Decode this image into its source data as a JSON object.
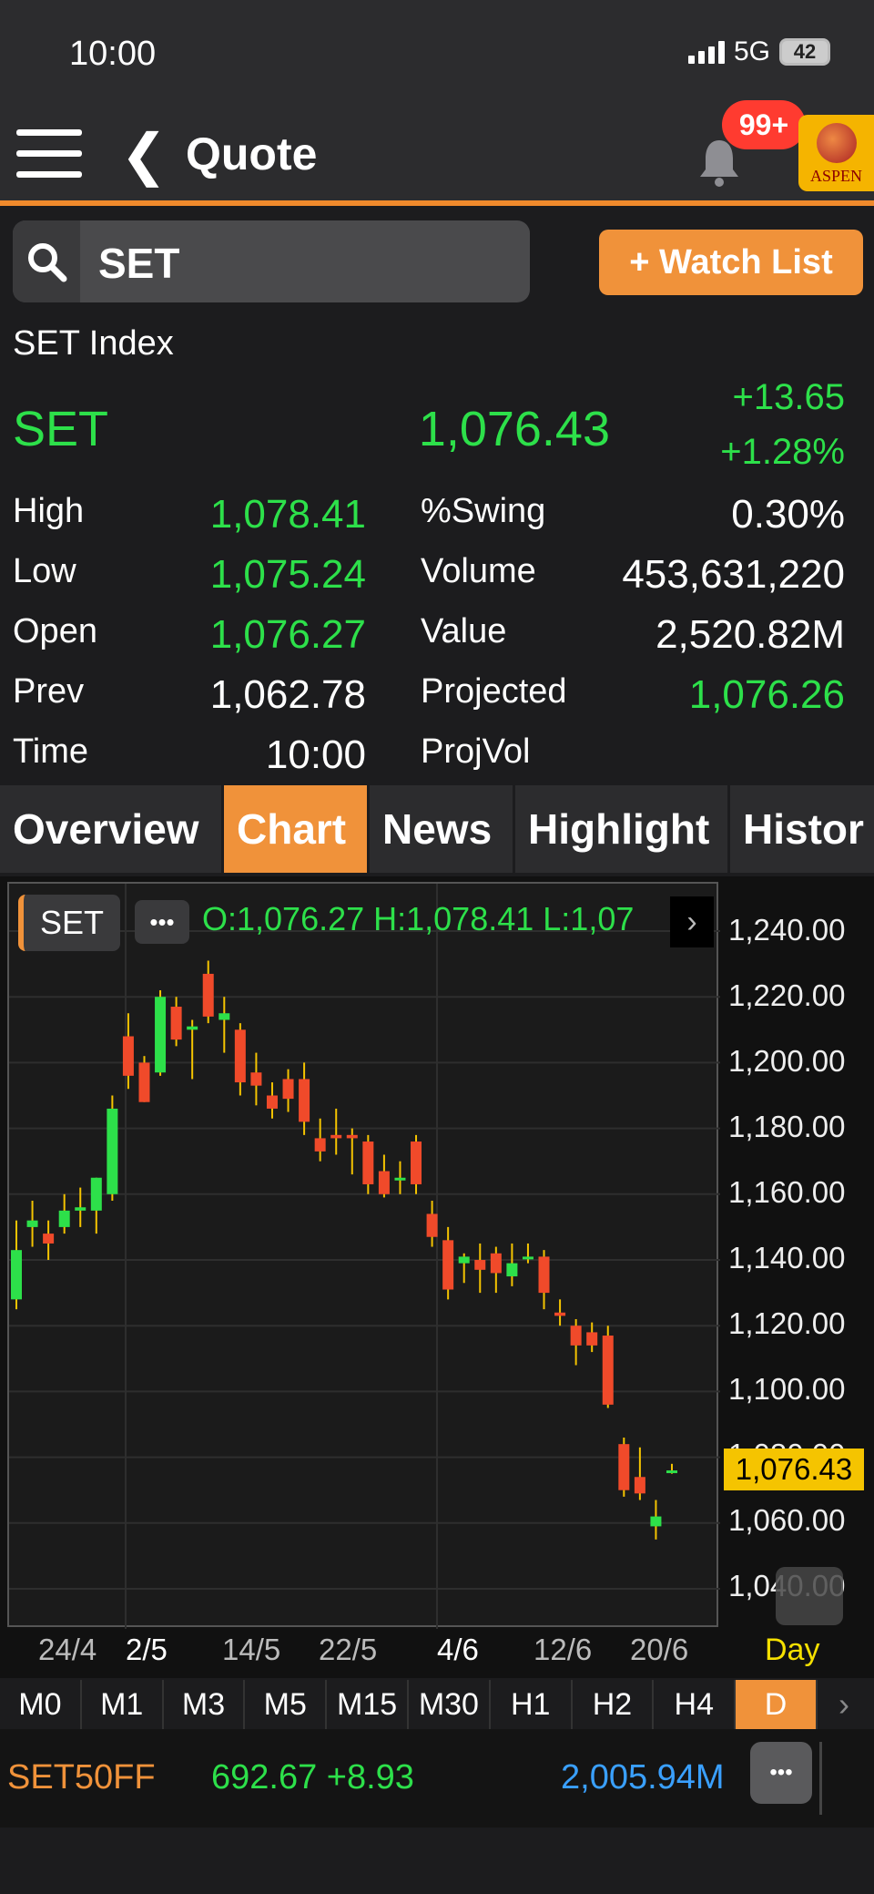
{
  "status_bar": {
    "time": "10:00",
    "network": "5G",
    "battery": "42"
  },
  "nav": {
    "title": "Quote",
    "badge": "99+",
    "logo_text": "ASPEN"
  },
  "search": {
    "value": "SET",
    "watch_label": "+ Watch List"
  },
  "quote": {
    "name": "SET Index",
    "symbol": "SET",
    "last": "1,076.43",
    "change": "+13.65",
    "change_pct": "+1.28%",
    "rows": [
      {
        "label": "High",
        "value": "1,078.41",
        "label2": "%Swing",
        "value2": "0.30%"
      },
      {
        "label": "Low",
        "value": "1,075.24",
        "label2": "Volume",
        "value2": "453,631,220"
      },
      {
        "label": "Open",
        "value": "1,076.27",
        "label2": "Value",
        "value2": "2,520.82M"
      },
      {
        "label": "Prev",
        "value": "1,062.78",
        "label2": "Projected",
        "value2": "1,076.26"
      },
      {
        "label": "Time",
        "value": "10:00",
        "label2": "ProjVol",
        "value2": ""
      }
    ]
  },
  "tabs": [
    "Overview",
    "Chart",
    "News",
    "Highlight",
    "Histor"
  ],
  "active_tab": "Chart",
  "chart_header": {
    "symbol": "SET",
    "more": "•••",
    "ohl": "O:1,076.27  H:1,078.41  L:1,07"
  },
  "price_tag": "1,076.43",
  "interval_label": "Day",
  "periods": [
    "M0",
    "M1",
    "M3",
    "M5",
    "M15",
    "M30",
    "H1",
    "H2",
    "H4",
    "D"
  ],
  "active_period": "D",
  "ticker": {
    "symbol": "SET50FF",
    "price": "692.67 +8.93",
    "value": "2,005.94M",
    "more": "•••"
  },
  "colors": {
    "accent": "#f0923a",
    "up": "#2de04a",
    "down": "#f04a2a",
    "value": "#3aa0ff"
  },
  "chart_data": {
    "type": "candlestick",
    "y_ticks": [
      "1,240.00",
      "1,220.00",
      "1,200.00",
      "1,180.00",
      "1,160.00",
      "1,140.00",
      "1,120.00",
      "1,100.00",
      "1,080.00",
      "1,060.00",
      "1,040.00"
    ],
    "ylim": [
      1035,
      1250
    ],
    "x_ticks": [
      "24/4",
      "2/5",
      "14/5",
      "22/5",
      "4/6",
      "12/6",
      "20/6"
    ],
    "grid": true,
    "candles": [
      {
        "o": 1128,
        "h": 1152,
        "l": 1125,
        "c": 1143
      },
      {
        "o": 1150,
        "h": 1158,
        "l": 1144,
        "c": 1152
      },
      {
        "o": 1148,
        "h": 1152,
        "l": 1140,
        "c": 1145
      },
      {
        "o": 1150,
        "h": 1160,
        "l": 1148,
        "c": 1155
      },
      {
        "o": 1155,
        "h": 1162,
        "l": 1150,
        "c": 1156
      },
      {
        "o": 1155,
        "h": 1165,
        "l": 1148,
        "c": 1165
      },
      {
        "o": 1160,
        "h": 1190,
        "l": 1158,
        "c": 1186
      },
      {
        "o": 1208,
        "h": 1215,
        "l": 1192,
        "c": 1196
      },
      {
        "o": 1200,
        "h": 1202,
        "l": 1188,
        "c": 1188
      },
      {
        "o": 1197,
        "h": 1222,
        "l": 1196,
        "c": 1220
      },
      {
        "o": 1217,
        "h": 1220,
        "l": 1205,
        "c": 1207
      },
      {
        "o": 1210,
        "h": 1213,
        "l": 1195,
        "c": 1211
      },
      {
        "o": 1227,
        "h": 1231,
        "l": 1212,
        "c": 1214
      },
      {
        "o": 1213,
        "h": 1220,
        "l": 1203,
        "c": 1215
      },
      {
        "o": 1210,
        "h": 1212,
        "l": 1190,
        "c": 1194
      },
      {
        "o": 1197,
        "h": 1203,
        "l": 1187,
        "c": 1193
      },
      {
        "o": 1190,
        "h": 1194,
        "l": 1183,
        "c": 1186
      },
      {
        "o": 1195,
        "h": 1198,
        "l": 1185,
        "c": 1189
      },
      {
        "o": 1195,
        "h": 1200,
        "l": 1178,
        "c": 1182
      },
      {
        "o": 1177,
        "h": 1183,
        "l": 1170,
        "c": 1173
      },
      {
        "o": 1178,
        "h": 1186,
        "l": 1172,
        "c": 1177
      },
      {
        "o": 1178,
        "h": 1180,
        "l": 1166,
        "c": 1177
      },
      {
        "o": 1176,
        "h": 1178,
        "l": 1160,
        "c": 1163
      },
      {
        "o": 1167,
        "h": 1172,
        "l": 1159,
        "c": 1160
      },
      {
        "o": 1165,
        "h": 1170,
        "l": 1160,
        "c": 1165
      },
      {
        "o": 1176,
        "h": 1178,
        "l": 1160,
        "c": 1163
      },
      {
        "o": 1154,
        "h": 1158,
        "l": 1144,
        "c": 1147
      },
      {
        "o": 1146,
        "h": 1150,
        "l": 1128,
        "c": 1131
      },
      {
        "o": 1139,
        "h": 1142,
        "l": 1133,
        "c": 1141
      },
      {
        "o": 1140,
        "h": 1145,
        "l": 1130,
        "c": 1137
      },
      {
        "o": 1142,
        "h": 1144,
        "l": 1130,
        "c": 1136
      },
      {
        "o": 1135,
        "h": 1145,
        "l": 1132,
        "c": 1139
      },
      {
        "o": 1141,
        "h": 1145,
        "l": 1139,
        "c": 1141
      },
      {
        "o": 1141,
        "h": 1143,
        "l": 1125,
        "c": 1130
      },
      {
        "o": 1124,
        "h": 1128,
        "l": 1120,
        "c": 1123
      },
      {
        "o": 1120,
        "h": 1122,
        "l": 1108,
        "c": 1114
      },
      {
        "o": 1118,
        "h": 1121,
        "l": 1112,
        "c": 1114
      },
      {
        "o": 1117,
        "h": 1120,
        "l": 1095,
        "c": 1096
      },
      {
        "o": 1084,
        "h": 1086,
        "l": 1068,
        "c": 1070
      },
      {
        "o": 1074,
        "h": 1083,
        "l": 1067,
        "c": 1069
      },
      {
        "o": 1059,
        "h": 1067,
        "l": 1055,
        "c": 1062
      },
      {
        "o": 1076,
        "h": 1078,
        "l": 1075,
        "c": 1076
      }
    ]
  }
}
